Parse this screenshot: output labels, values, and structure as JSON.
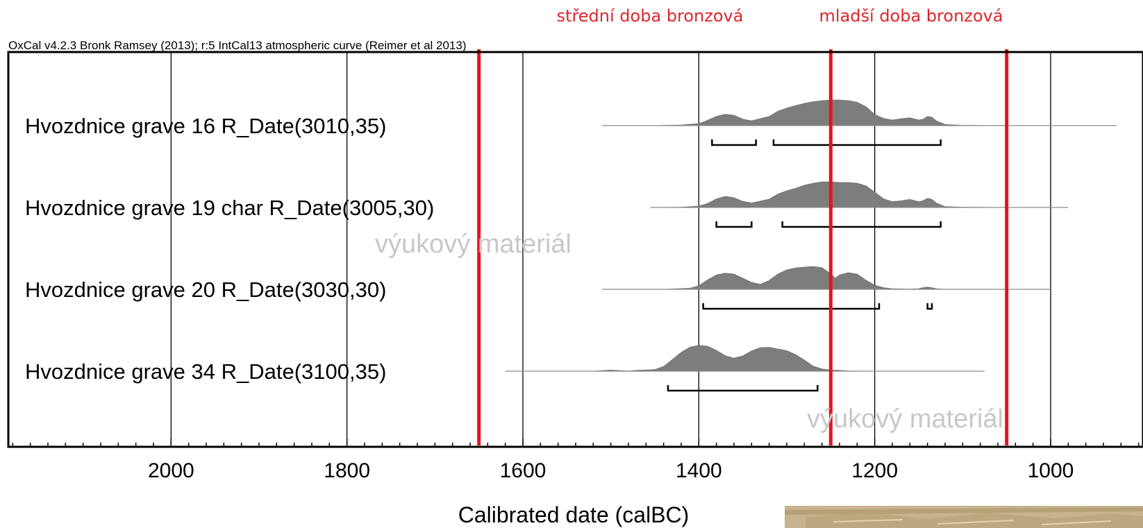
{
  "header": {
    "period_labels": [
      "střední doba bronzová",
      "mladší doba bronzová"
    ],
    "credit": "OxCal v4.2.3 Bronk Ramsey (2013); r:5 IntCal13 atmospheric curve (Reimer et al 2013)"
  },
  "watermarks": [
    "výukový materiál",
    "výukový materiál"
  ],
  "chart_data": {
    "type": "area",
    "xlabel": "Calibrated date (calBC)",
    "xlim": [
      2185,
      895
    ],
    "x_reversed": true,
    "xticks": [
      2000,
      1800,
      1600,
      1400,
      1200,
      1000
    ],
    "xticks_minor_step": 20,
    "grid": true,
    "period_boundaries_calBC": [
      1650,
      1250,
      1050
    ],
    "colors": {
      "boundary": "#e8131b",
      "distribution": "#7d7d7d",
      "frame": "#000000"
    },
    "series": [
      {
        "name": "Hvozdnice grave 16 R_Date(3010,35)",
        "baseline_range": [
          1510,
          925
        ],
        "ranges_calBC": [
          [
            1385,
            1335
          ],
          [
            1315,
            1125
          ]
        ],
        "density_x": [
          1510,
          1450,
          1420,
          1400,
          1390,
          1380,
          1370,
          1360,
          1350,
          1340,
          1320,
          1310,
          1300,
          1290,
          1280,
          1270,
          1260,
          1250,
          1240,
          1230,
          1220,
          1210,
          1200,
          1190,
          1180,
          1170,
          1160,
          1150,
          1145,
          1140,
          1135,
          1130,
          1120,
          1100,
          1060,
          1000,
          925
        ],
        "density_y": [
          0,
          0,
          0.02,
          0.07,
          0.19,
          0.33,
          0.41,
          0.37,
          0.23,
          0.17,
          0.33,
          0.52,
          0.63,
          0.72,
          0.8,
          0.86,
          0.9,
          0.92,
          0.92,
          0.9,
          0.84,
          0.68,
          0.4,
          0.26,
          0.2,
          0.25,
          0.28,
          0.2,
          0.23,
          0.33,
          0.3,
          0.17,
          0.04,
          0.01,
          0,
          0,
          0
        ]
      },
      {
        "name": "Hvozdnice grave 19 char R_Date(3005,30)",
        "baseline_range": [
          1455,
          980
        ],
        "ranges_calBC": [
          [
            1380,
            1340
          ],
          [
            1305,
            1125
          ]
        ],
        "density_x": [
          1455,
          1420,
          1400,
          1390,
          1380,
          1370,
          1360,
          1350,
          1340,
          1320,
          1310,
          1300,
          1290,
          1280,
          1270,
          1260,
          1250,
          1240,
          1230,
          1220,
          1210,
          1200,
          1190,
          1180,
          1170,
          1160,
          1150,
          1145,
          1140,
          1135,
          1130,
          1120,
          1100,
          1060,
          980
        ],
        "density_y": [
          0,
          0.01,
          0.05,
          0.14,
          0.31,
          0.4,
          0.35,
          0.22,
          0.16,
          0.3,
          0.48,
          0.6,
          0.69,
          0.8,
          0.87,
          0.92,
          0.92,
          0.9,
          0.9,
          0.87,
          0.78,
          0.55,
          0.31,
          0.21,
          0.24,
          0.29,
          0.21,
          0.24,
          0.33,
          0.29,
          0.16,
          0.03,
          0.01,
          0,
          0
        ]
      },
      {
        "name": "Hvozdnice grave 20 R_Date(3030,30)",
        "baseline_range": [
          1510,
          1000
        ],
        "ranges_calBC": [
          [
            1395,
            1195
          ],
          [
            1140,
            1135
          ]
        ],
        "density_x": [
          1510,
          1440,
          1410,
          1400,
          1390,
          1380,
          1370,
          1360,
          1350,
          1340,
          1330,
          1320,
          1310,
          1300,
          1290,
          1280,
          1270,
          1260,
          1250,
          1245,
          1240,
          1230,
          1220,
          1210,
          1200,
          1190,
          1180,
          1160,
          1150,
          1145,
          1140,
          1135,
          1130,
          1120,
          1080,
          1000
        ],
        "density_y": [
          0,
          0,
          0.04,
          0.13,
          0.34,
          0.52,
          0.58,
          0.55,
          0.4,
          0.25,
          0.18,
          0.32,
          0.55,
          0.7,
          0.77,
          0.8,
          0.82,
          0.78,
          0.56,
          0.4,
          0.52,
          0.6,
          0.55,
          0.33,
          0.15,
          0.06,
          0.02,
          0.01,
          0.02,
          0.06,
          0.08,
          0.06,
          0.02,
          0,
          0,
          0
        ]
      },
      {
        "name": "Hvozdnice grave 34 R_Date(3100,35)",
        "baseline_range": [
          1620,
          1075
        ],
        "ranges_calBC": [
          [
            1435,
            1265
          ]
        ],
        "density_x": [
          1620,
          1520,
          1510,
          1500,
          1490,
          1480,
          1470,
          1450,
          1440,
          1430,
          1420,
          1410,
          1400,
          1390,
          1380,
          1370,
          1360,
          1350,
          1340,
          1330,
          1320,
          1310,
          1300,
          1290,
          1280,
          1270,
          1260,
          1250,
          1240,
          1230,
          1200,
          1150,
          1075
        ],
        "density_y": [
          0,
          0,
          0.02,
          0.04,
          0.02,
          0.01,
          0.03,
          0.06,
          0.17,
          0.42,
          0.68,
          0.87,
          0.93,
          0.9,
          0.75,
          0.56,
          0.47,
          0.55,
          0.73,
          0.85,
          0.86,
          0.8,
          0.74,
          0.6,
          0.4,
          0.18,
          0.08,
          0.04,
          0.03,
          0.01,
          0,
          0,
          0
        ]
      }
    ]
  }
}
